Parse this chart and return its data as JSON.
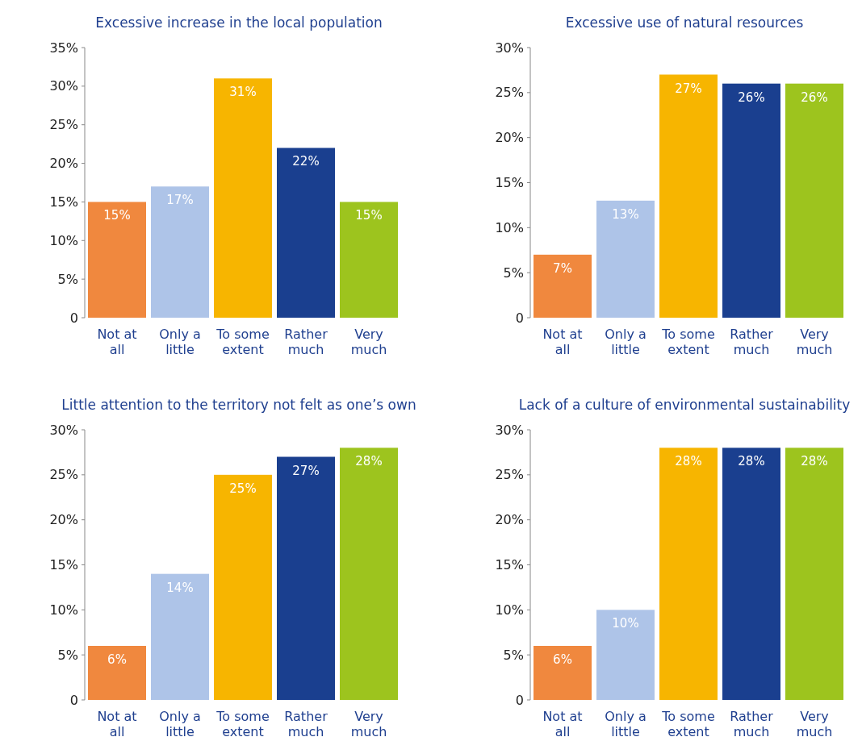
{
  "chart_data": [
    {
      "type": "bar",
      "title": "Excessive increase in the local population",
      "categories": [
        "Not at all",
        "Only a little",
        "To some extent",
        "Rather much",
        "Very much"
      ],
      "values": [
        15,
        17,
        31,
        22,
        15
      ],
      "colors": [
        "#f0883e",
        "#aec4e8",
        "#f7b500",
        "#1a3f8f",
        "#9dc41e"
      ],
      "ylim": [
        0,
        35
      ],
      "yticks": [
        {
          "value": 0,
          "label": "0"
        },
        {
          "value": 5,
          "label": "5%"
        },
        {
          "value": 10,
          "label": "10%"
        },
        {
          "value": 15,
          "label": "15%"
        },
        {
          "value": 20,
          "label": "20%"
        },
        {
          "value": 25,
          "label": "25%"
        },
        {
          "value": 30,
          "label": "30%"
        },
        {
          "value": 35,
          "label": "35%"
        }
      ],
      "value_labels": [
        "15%",
        "17%",
        "31%",
        "22%",
        "15%"
      ]
    },
    {
      "type": "bar",
      "title": "Excessive use of natural resources",
      "categories": [
        "Not at all",
        "Only a little",
        "To some extent",
        "Rather much",
        "Very much"
      ],
      "values": [
        7,
        13,
        27,
        26,
        26
      ],
      "colors": [
        "#f0883e",
        "#aec4e8",
        "#f7b500",
        "#1a3f8f",
        "#9dc41e"
      ],
      "ylim": [
        0,
        30
      ],
      "yticks": [
        {
          "value": 0,
          "label": "0"
        },
        {
          "value": 5,
          "label": "5%"
        },
        {
          "value": 10,
          "label": "10%"
        },
        {
          "value": 15,
          "label": "15%"
        },
        {
          "value": 20,
          "label": "20%"
        },
        {
          "value": 25,
          "label": "25%"
        },
        {
          "value": 30,
          "label": "30%"
        }
      ],
      "value_labels": [
        "7%",
        "13%",
        "27%",
        "26%",
        "26%"
      ]
    },
    {
      "type": "bar",
      "title": "Little attention to the territory not felt as one’s own",
      "categories": [
        "Not at all",
        "Only a little",
        "To some extent",
        "Rather much",
        "Very much"
      ],
      "values": [
        6,
        14,
        25,
        27,
        28
      ],
      "colors": [
        "#f0883e",
        "#aec4e8",
        "#f7b500",
        "#1a3f8f",
        "#9dc41e"
      ],
      "ylim": [
        0,
        30
      ],
      "yticks": [
        {
          "value": 0,
          "label": "0"
        },
        {
          "value": 5,
          "label": "5%"
        },
        {
          "value": 10,
          "label": "10%"
        },
        {
          "value": 15,
          "label": "15%"
        },
        {
          "value": 20,
          "label": "20%"
        },
        {
          "value": 25,
          "label": "25%"
        },
        {
          "value": 30,
          "label": "30%"
        }
      ],
      "value_labels": [
        "6%",
        "14%",
        "25%",
        "27%",
        "28%"
      ]
    },
    {
      "type": "bar",
      "title": "Lack of a culture of environmental sustainability",
      "categories": [
        "Not at all",
        "Only a little",
        "To some extent",
        "Rather much",
        "Very much"
      ],
      "values": [
        6,
        10,
        28,
        28,
        28
      ],
      "colors": [
        "#f0883e",
        "#aec4e8",
        "#f7b500",
        "#1a3f8f",
        "#9dc41e"
      ],
      "ylim": [
        0,
        30
      ],
      "yticks": [
        {
          "value": 0,
          "label": "0"
        },
        {
          "value": 5,
          "label": "5%"
        },
        {
          "value": 10,
          "label": "10%"
        },
        {
          "value": 15,
          "label": "15%"
        },
        {
          "value": 20,
          "label": "20%"
        },
        {
          "value": 25,
          "label": "25%"
        },
        {
          "value": 30,
          "label": "30%"
        }
      ],
      "value_labels": [
        "6%",
        "10%",
        "28%",
        "28%",
        "28%"
      ]
    }
  ]
}
